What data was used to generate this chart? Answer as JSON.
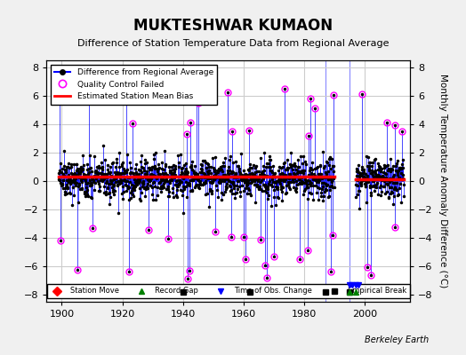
{
  "title": "MUKTESHWAR KUMAON",
  "subtitle": "Difference of Station Temperature Data from Regional Average",
  "ylabel": "Monthly Temperature Anomaly Difference (°C)",
  "xlabel_ticks": [
    1900,
    1920,
    1940,
    1960,
    1980,
    2000
  ],
  "ylim": [
    -8.5,
    8.5
  ],
  "xlim": [
    1895,
    2015
  ],
  "yticks": [
    -8,
    -6,
    -4,
    -2,
    0,
    2,
    4,
    6,
    8
  ],
  "grid_color": "#cccccc",
  "bg_color": "#f0f0f0",
  "plot_bg_color": "#ffffff",
  "line_color": "#0000ff",
  "marker_color": "#000000",
  "bias_color": "#ff0000",
  "qc_fail_color": "#ff00ff",
  "seed": 42,
  "start_year": 1899,
  "end_year": 2012,
  "gap_start": 1990,
  "gap_end": 1997,
  "bias_value_1": 0.3,
  "bias_value_2": 0.1,
  "empirical_breaks": [
    1940,
    1962,
    1987,
    1995
  ],
  "record_gaps": [
    1995,
    1997
  ],
  "time_of_obs_changes": [
    1995,
    1996,
    1997,
    1998
  ],
  "station_moves": [],
  "vertical_lines": [
    1987,
    1995
  ],
  "footnote": "Berkeley Earth"
}
